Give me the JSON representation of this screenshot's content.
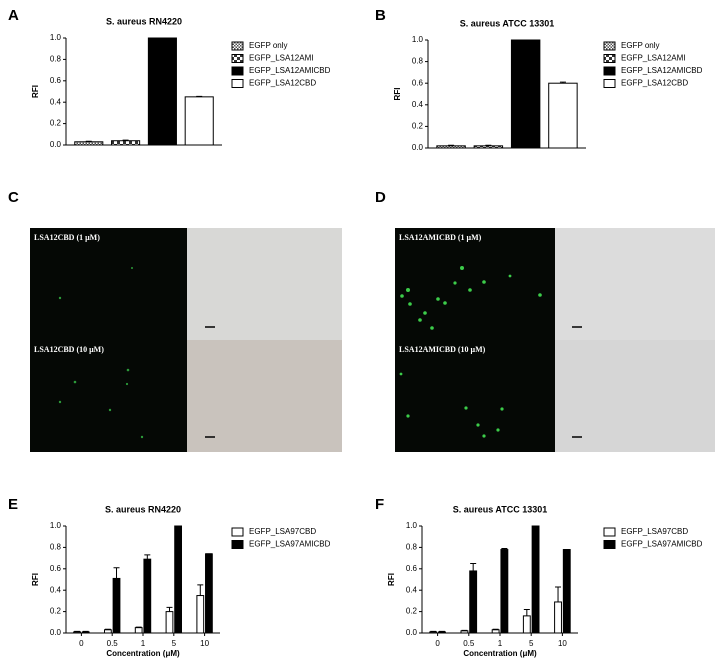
{
  "panels": [
    "A",
    "B",
    "C",
    "D",
    "E",
    "F"
  ],
  "micrographs": {
    "C": [
      "LSA12CBD (1 μM)",
      "LSA12CBD (10 μM)"
    ],
    "D": [
      "LSA12AMICBD (1 μM)",
      "LSA12AMICBD (10 μM)"
    ]
  },
  "chart_data": [
    {
      "type": "bar",
      "title": "S. aureus RN4220",
      "ylabel": "RFI",
      "categories": [
        null
      ],
      "ylim": [
        0,
        1
      ],
      "yticks": [
        {
          "value": 0,
          "label": "0.0"
        },
        0.2,
        0.4,
        0.6,
        0.8,
        {
          "value": 1,
          "label": "1.0"
        }
      ],
      "series": [
        {
          "name": "EGFP only",
          "color": "#555555",
          "pattern": "dots",
          "values": [
            0.03
          ],
          "errors": [
            0.005
          ]
        },
        {
          "name": "EGFP_LSA12AMI",
          "color": "#333333",
          "pattern": "checker",
          "values": [
            0.04
          ],
          "errors": [
            0.005
          ]
        },
        {
          "name": "EGFP_LSA12AMICBD",
          "color": "#000000",
          "pattern": "solid",
          "values": [
            1.0
          ],
          "errors": [
            0
          ]
        },
        {
          "name": "EGFP_LSA12CBD",
          "color": "#ffffff",
          "pattern": "solid",
          "values": [
            0.45
          ],
          "errors": [
            0.005
          ]
        }
      ]
    },
    {
      "type": "bar",
      "title": "S. aureus ATCC 13301",
      "ylabel": "RFI",
      "categories": [
        null
      ],
      "ylim": [
        0,
        1
      ],
      "yticks": [
        {
          "value": 0,
          "label": "0.0"
        },
        0.2,
        0.4,
        0.6,
        0.8,
        {
          "value": 1,
          "label": "1.0"
        }
      ],
      "series": [
        {
          "name": "EGFP only",
          "color": "#555555",
          "pattern": "dots",
          "values": [
            0.02
          ],
          "errors": [
            0.005
          ]
        },
        {
          "name": "EGFP_LSA12AMI",
          "color": "#333333",
          "pattern": "checker",
          "values": [
            0.02
          ],
          "errors": [
            0.005
          ]
        },
        {
          "name": "EGFP_LSA12AMICBD",
          "color": "#000000",
          "pattern": "solid",
          "values": [
            1.0
          ],
          "errors": [
            0
          ]
        },
        {
          "name": "EGFP_LSA12CBD",
          "color": "#ffffff",
          "pattern": "solid",
          "values": [
            0.6
          ],
          "errors": [
            0.01
          ]
        }
      ]
    },
    {
      "type": "bar",
      "title": "S. aureus RN4220",
      "ylabel": "RFI",
      "xlabel": "Concentration (μM)",
      "categories": [
        "0",
        "0.5",
        "1",
        "5",
        "10"
      ],
      "ylim": [
        0,
        1
      ],
      "yticks": [
        {
          "value": 0,
          "label": "0.0"
        },
        0.2,
        0.4,
        0.6,
        0.8,
        {
          "value": 1,
          "label": "1.0"
        }
      ],
      "series": [
        {
          "name": "EGFP_LSA97CBD",
          "color": "#ffffff",
          "pattern": "solid",
          "values": [
            0.01,
            0.03,
            0.05,
            0.2,
            0.35
          ],
          "errors": [
            0.005,
            0.005,
            0.005,
            0.04,
            0.1
          ]
        },
        {
          "name": "EGFP_LSA97AMICBD",
          "color": "#000000",
          "pattern": "solid",
          "values": [
            0.01,
            0.51,
            0.69,
            1.0,
            0.74
          ],
          "errors": [
            0.005,
            0.1,
            0.04,
            0,
            0
          ]
        }
      ]
    },
    {
      "type": "bar",
      "title": "S. aureus ATCC 13301",
      "ylabel": "RFI",
      "xlabel": "Concentration (μM)",
      "categories": [
        "0",
        "0.5",
        "1",
        "5",
        "10"
      ],
      "ylim": [
        0,
        1
      ],
      "yticks": [
        {
          "value": 0,
          "label": "0.0"
        },
        0.2,
        0.4,
        0.6,
        0.8,
        {
          "value": 1,
          "label": "1.0"
        }
      ],
      "series": [
        {
          "name": "EGFP_LSA97CBD",
          "color": "#ffffff",
          "pattern": "solid",
          "values": [
            0.01,
            0.02,
            0.03,
            0.16,
            0.29
          ],
          "errors": [
            0.005,
            0.005,
            0.005,
            0.06,
            0.14
          ]
        },
        {
          "name": "EGFP_LSA97AMICBD",
          "color": "#000000",
          "pattern": "solid",
          "values": [
            0.01,
            0.58,
            0.78,
            1.0,
            0.78
          ],
          "errors": [
            0.005,
            0.07,
            0.01,
            0,
            0
          ]
        }
      ]
    }
  ]
}
